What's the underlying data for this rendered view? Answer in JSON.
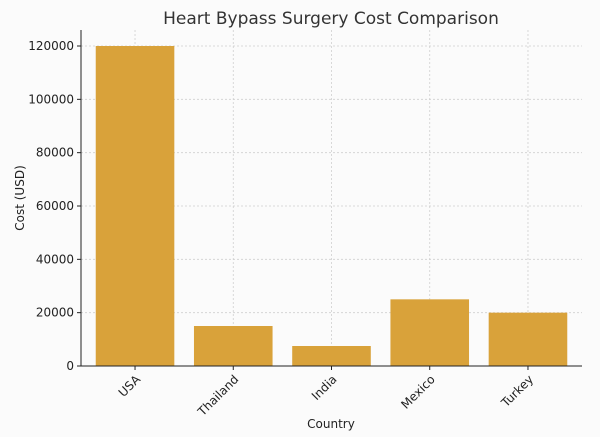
{
  "chart_data": {
    "type": "bar",
    "title": "Heart Bypass Surgery Cost Comparison",
    "xlabel": "Country",
    "ylabel": "Cost (USD)",
    "categories": [
      "USA",
      "Thailand",
      "India",
      "Mexico",
      "Turkey"
    ],
    "values": [
      120000,
      15000,
      7500,
      25000,
      20000
    ],
    "ylim": [
      0,
      126000
    ],
    "yticks": [
      0,
      20000,
      40000,
      60000,
      80000,
      100000,
      120000
    ],
    "grid": true,
    "bar_color": "#d9a23a",
    "legend": "none"
  }
}
